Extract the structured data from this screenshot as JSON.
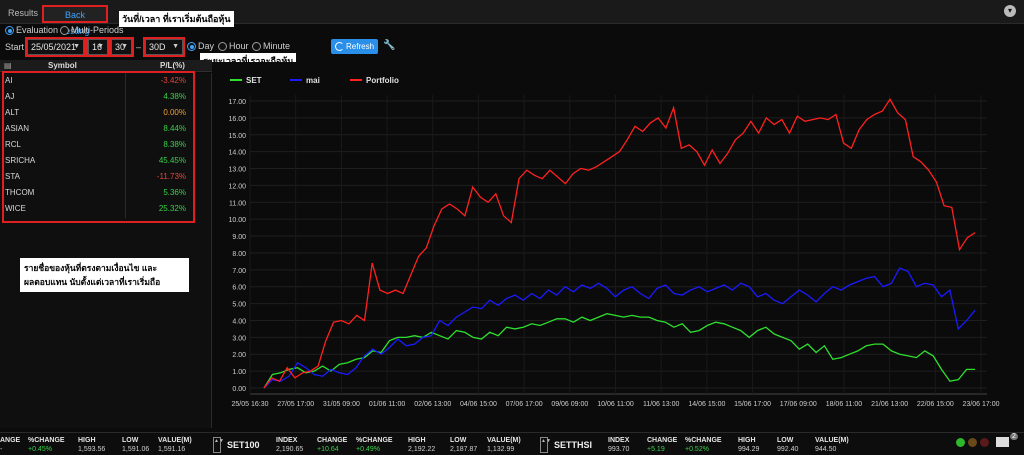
{
  "tabs": {
    "results": "Results",
    "back_testing": "Back Testing"
  },
  "annotations": {
    "start_date": "วันที่/เวลา ที่เราเริ่มต้นถือหุ้น",
    "duration": "ระยะเวลาที่เราจะถือหุ้น",
    "note_line1": "รายชื่อของหุ้นที่ตรงตามเงื่อนไข และ",
    "note_line2": "ผลตอบแทน นับตั้งแต่เวลาที่เราเริ่มถือ"
  },
  "mode": {
    "evaluation": "Evaluation",
    "multi_periods": "Multi-Periods"
  },
  "controls": {
    "start_label": "Start",
    "date": "25/05/2021",
    "hour": "16",
    "minute": "30",
    "separator": "–",
    "period": "30D",
    "unit_day": "Day",
    "unit_hour": "Hour",
    "unit_minute": "Minute",
    "refresh": "Refresh"
  },
  "table": {
    "col_symbol": "Symbol",
    "col_pl": "P/L(%)",
    "rows": [
      {
        "symbol": "AI",
        "pl": "-3.42%",
        "color": "#e8453c"
      },
      {
        "symbol": "AJ",
        "pl": "4.38%",
        "color": "#3ad14a"
      },
      {
        "symbol": "ALT",
        "pl": "0.00%",
        "color": "#f0a030"
      },
      {
        "symbol": "ASIAN",
        "pl": "8.44%",
        "color": "#3ad14a"
      },
      {
        "symbol": "RCL",
        "pl": "8.38%",
        "color": "#3ad14a"
      },
      {
        "symbol": "SRICHA",
        "pl": "45.45%",
        "color": "#3ad14a"
      },
      {
        "symbol": "STA",
        "pl": "-11.73%",
        "color": "#e8453c"
      },
      {
        "symbol": "THCOM",
        "pl": "5.36%",
        "color": "#3ad14a"
      },
      {
        "symbol": "WICE",
        "pl": "25.32%",
        "color": "#3ad14a"
      }
    ]
  },
  "chart_data": {
    "type": "line",
    "legend": "top-left",
    "grid": true,
    "ylim": [
      0,
      17
    ],
    "yticks": [
      "0.00",
      "1.00",
      "2.00",
      "3.00",
      "4.00",
      "5.00",
      "6.00",
      "7.00",
      "8.00",
      "9.00",
      "10.00",
      "11.00",
      "12.00",
      "13.00",
      "14.00",
      "15.00",
      "16.00",
      "17.00"
    ],
    "xticks": [
      "25/05 16:30",
      "27/05 17:00",
      "31/05 09:00",
      "01/06 11:00",
      "02/06 13:00",
      "04/06 15:00",
      "07/06 17:00",
      "09/06 09:00",
      "10/06 11:00",
      "11/06 13:00",
      "14/06 15:00",
      "15/06 17:00",
      "17/06 09:00",
      "18/06 11:00",
      "21/06 13:00",
      "22/06 15:00",
      "23/06 17:00"
    ],
    "series": [
      {
        "name": "SET",
        "color": "#2ee02e",
        "values": [
          0,
          0.8,
          0.9,
          1.1,
          1.2,
          0.9,
          1.0,
          1.3,
          1.0,
          1.4,
          1.5,
          1.7,
          1.8,
          2.2,
          2.1,
          2.8,
          3.0,
          3.0,
          3.1,
          3.0,
          3.3,
          3.1,
          2.9,
          3.4,
          3.3,
          3.0,
          2.9,
          3.3,
          3.1,
          3.6,
          3.5,
          3.6,
          3.8,
          3.7,
          3.9,
          4.1,
          4.1,
          3.9,
          4.2,
          4.0,
          4.2,
          4.4,
          4.3,
          4.2,
          4.3,
          4.2,
          4.2,
          4.0,
          3.9,
          3.6,
          3.8,
          3.3,
          3.4,
          3.7,
          3.9,
          3.8,
          3.6,
          3.4,
          3.0,
          3.4,
          3.6,
          3.2,
          3.0,
          2.8,
          2.3,
          2.6,
          2.1,
          2.5,
          1.7,
          1.8,
          2.0,
          2.2,
          2.5,
          2.6,
          2.6,
          2.2,
          2.0,
          1.9,
          1.8,
          2.2,
          1.9,
          1.1,
          0.4,
          0.5,
          1.1,
          1.1
        ]
      },
      {
        "name": "mai",
        "color": "#1a1aff",
        "values": [
          0,
          0.5,
          0.4,
          0.7,
          1.5,
          1.2,
          0.8,
          0.7,
          1.1,
          0.9,
          0.8,
          1.2,
          1.9,
          2.3,
          2.0,
          2.4,
          2.9,
          2.5,
          2.6,
          3.0,
          3.1,
          4.0,
          3.7,
          4.2,
          4.5,
          4.8,
          4.7,
          5.2,
          4.9,
          5.3,
          5.5,
          5.2,
          5.6,
          5.3,
          5.8,
          5.5,
          6.0,
          5.7,
          6.1,
          5.9,
          6.2,
          5.9,
          5.4,
          5.8,
          6.0,
          5.6,
          5.3,
          5.9,
          6.1,
          5.6,
          5.5,
          5.8,
          6.0,
          5.7,
          5.9,
          6.1,
          5.8,
          6.2,
          6.0,
          5.4,
          5.6,
          5.2,
          5.0,
          5.4,
          5.8,
          5.5,
          5.1,
          5.6,
          6.0,
          5.8,
          6.1,
          6.3,
          6.5,
          6.6,
          6.0,
          6.2,
          7.1,
          6.9,
          6.0,
          6.2,
          6.1,
          5.4,
          5.8,
          3.5,
          4.0,
          4.6
        ]
      },
      {
        "name": "Portfolio",
        "color": "#ff2020",
        "values": [
          0,
          0.6,
          0.4,
          1.2,
          0.6,
          0.9,
          1.0,
          1.3,
          2.8,
          3.9,
          4.0,
          3.8,
          4.3,
          4.0,
          7.4,
          5.8,
          5.6,
          5.8,
          5.6,
          6.7,
          7.8,
          8.3,
          9.6,
          10.6,
          10.9,
          10.6,
          10.2,
          11.9,
          11.3,
          11.0,
          11.5,
          10.2,
          9.8,
          12.4,
          12.9,
          12.6,
          12.4,
          12.9,
          12.5,
          12.1,
          12.7,
          13.0,
          12.9,
          13.1,
          13.4,
          13.7,
          14.0,
          14.7,
          15.5,
          15.2,
          15.7,
          16.0,
          15.4,
          16.6,
          14.2,
          14.4,
          14.0,
          13.2,
          14.1,
          13.3,
          13.9,
          14.7,
          15.1,
          15.8,
          15.1,
          16.0,
          15.6,
          15.9,
          15.1,
          16.1,
          15.8,
          15.9,
          16.0,
          15.9,
          16.2,
          14.5,
          14.2,
          15.3,
          15.9,
          16.2,
          16.4,
          17.1,
          16.3,
          15.9,
          13.7,
          13.4,
          12.9,
          12.2,
          10.8,
          10.7,
          8.2,
          8.9,
          9.2
        ]
      }
    ]
  },
  "ticker": {
    "left_partial": {
      "headers": [
        "ANGE",
        "%CHANGE",
        "HIGH",
        "LOW",
        "VALUE(M)"
      ],
      "values": [
        "-",
        "+0.45%",
        "1,593.56",
        "1,591.06",
        "1,591.16"
      ]
    },
    "set100": {
      "name": "SET100",
      "headers": [
        "INDEX",
        "CHANGE",
        "%CHANGE",
        "HIGH",
        "LOW",
        "VALUE(M)"
      ],
      "values": [
        "2,190.65",
        "+10.64",
        "+0.49%",
        "2,192.22",
        "2,187.87",
        "1,132.99"
      ]
    },
    "setthsi": {
      "name": "SETTHSI",
      "headers": [
        "INDEX",
        "CHANGE",
        "%CHANGE",
        "HIGH",
        "LOW",
        "VALUE(M)"
      ],
      "values": [
        "993.70",
        "+5.19",
        "+0.52%",
        "994.29",
        "992.40",
        "944.50"
      ]
    },
    "mail_count": "2"
  }
}
